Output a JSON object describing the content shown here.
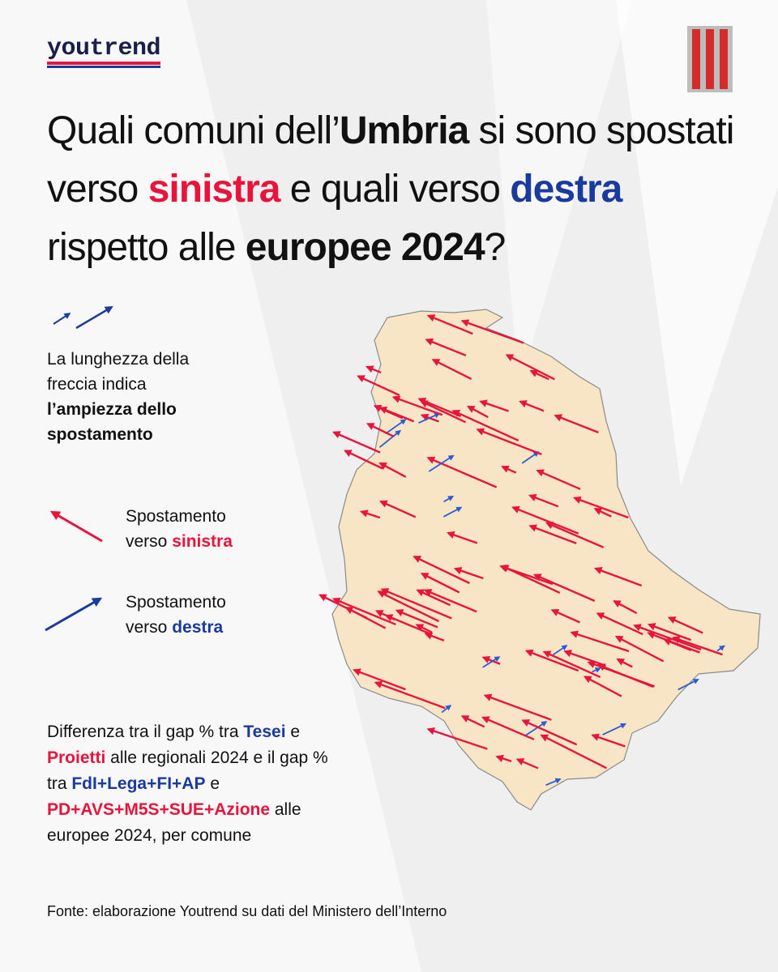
{
  "logo": "youtrend",
  "title": [
    "Quali comuni dell’",
    "Umbria",
    " si sono spostati verso ",
    "sinistra",
    " e quali verso ",
    "destra",
    " rispetto alle ",
    "europee 2024",
    "?"
  ],
  "legend": {
    "length_note": [
      "La lunghezza della freccia indica ",
      "l’ampiezza dello spostamento"
    ],
    "left": [
      "Spostamento verso ",
      "sinistra"
    ],
    "right": [
      "Spostamento verso ",
      "destra"
    ]
  },
  "description": [
    "Differenza tra il gap % tra ",
    "Tesei",
    " e ",
    "Proietti",
    " alle regionali 2024 e il gap % tra ",
    "FdI+Lega+FI+AP",
    " e ",
    "PD+AVS+M5S+SUE+Azione",
    " alle europee 2024, per comune"
  ],
  "source": "Fonte: elaborazione Youtrend su dati del Ministero dell’Interno"
}
